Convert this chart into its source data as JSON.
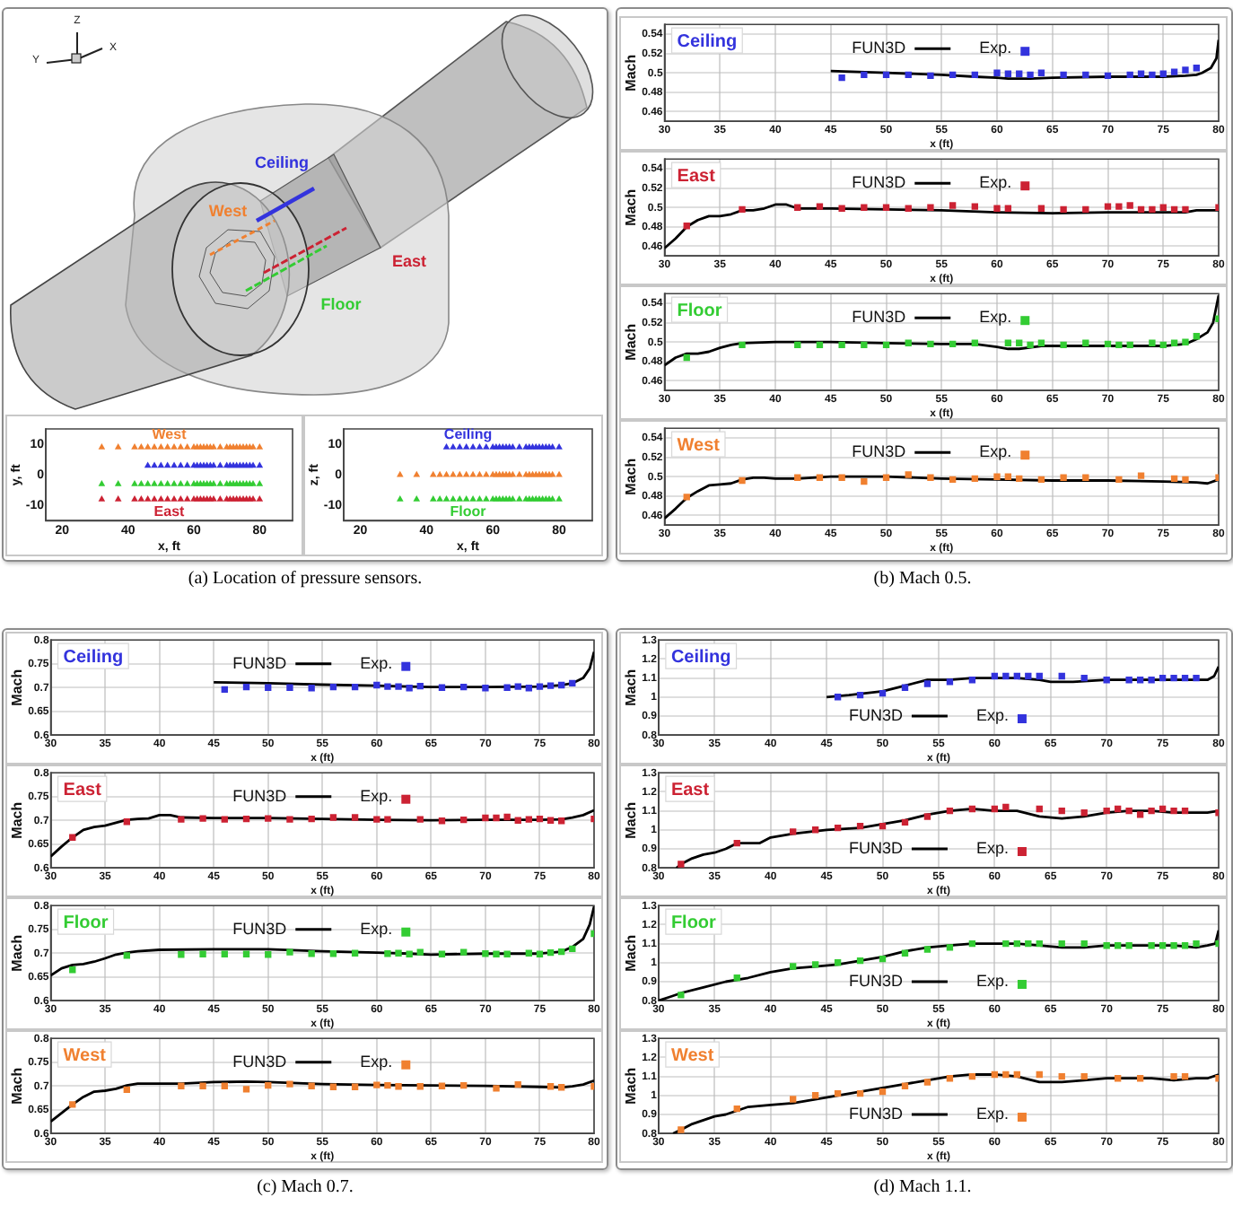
{
  "chart_data": [
    {
      "type": "other",
      "annotations": [
        "Z",
        "Y",
        "X",
        "Ceiling",
        "West",
        "East",
        "Floor"
      ]
    },
    {
      "type": "scatter",
      "xlabel": "x, ft",
      "ylabel": "y, ft",
      "xlim": [
        15,
        90
      ],
      "xticks": [
        20,
        40,
        60,
        80
      ],
      "ylim": [
        -15,
        15
      ],
      "yticks": [
        -10,
        0,
        10
      ],
      "series": [
        {
          "name": "West",
          "color": "#f08030",
          "marker": "triangle",
          "x": [
            32,
            37,
            42,
            44,
            46,
            48,
            50,
            52,
            54,
            56,
            58,
            60,
            61,
            62,
            63,
            64,
            65,
            66,
            68,
            70,
            71,
            72,
            73,
            74,
            75,
            76,
            77,
            78,
            80
          ],
          "values": [
            9,
            9,
            9,
            9,
            9,
            9,
            9,
            9,
            9,
            9,
            9,
            9,
            9,
            9,
            9,
            9,
            9,
            9,
            9,
            9,
            9,
            9,
            9,
            9,
            9,
            9,
            9,
            9,
            9
          ]
        },
        {
          "color": "#3333dd",
          "marker": "triangle",
          "x": [
            46,
            48,
            50,
            52,
            54,
            56,
            58,
            60,
            61,
            62,
            63,
            64,
            65,
            66,
            68,
            70,
            71,
            72,
            73,
            74,
            75,
            76,
            77,
            78,
            80
          ],
          "values": [
            3,
            3,
            3,
            3,
            3,
            3,
            3,
            3,
            3,
            3,
            3,
            3,
            3,
            3,
            3,
            3,
            3,
            3,
            3,
            3,
            3,
            3,
            3,
            3,
            3
          ]
        },
        {
          "color": "#33cc33",
          "marker": "triangle",
          "x": [
            32,
            37,
            42,
            44,
            46,
            48,
            50,
            52,
            54,
            56,
            58,
            60,
            61,
            62,
            63,
            64,
            65,
            66,
            68,
            70,
            71,
            72,
            73,
            74,
            75,
            76,
            77,
            78,
            80
          ],
          "values": [
            -3,
            -3,
            -3,
            -3,
            -3,
            -3,
            -3,
            -3,
            -3,
            -3,
            -3,
            -3,
            -3,
            -3,
            -3,
            -3,
            -3,
            -3,
            -3,
            -3,
            -3,
            -3,
            -3,
            -3,
            -3,
            -3,
            -3,
            -3,
            -3
          ]
        },
        {
          "name": "East",
          "color": "#cc2233",
          "marker": "triangle",
          "x": [
            32,
            37,
            42,
            44,
            46,
            48,
            50,
            52,
            54,
            56,
            58,
            60,
            61,
            62,
            63,
            64,
            65,
            66,
            68,
            70,
            71,
            72,
            73,
            74,
            75,
            76,
            77,
            78,
            80
          ],
          "values": [
            -8,
            -8,
            -8,
            -8,
            -8,
            -8,
            -8,
            -8,
            -8,
            -8,
            -8,
            -8,
            -8,
            -8,
            -8,
            -8,
            -8,
            -8,
            -8,
            -8,
            -8,
            -8,
            -8,
            -8,
            -8,
            -8,
            -8,
            -8,
            -8
          ]
        }
      ]
    },
    {
      "type": "scatter",
      "xlabel": "x, ft",
      "ylabel": "z, ft",
      "xlim": [
        15,
        90
      ],
      "xticks": [
        20,
        40,
        60,
        80
      ],
      "ylim": [
        -15,
        15
      ],
      "yticks": [
        -10,
        0,
        10
      ],
      "annotations": [
        "(a) Location of pressure sensors."
      ],
      "series": [
        {
          "name": "Ceiling",
          "color": "#3333dd",
          "marker": "triangle",
          "x": [
            46,
            48,
            50,
            52,
            54,
            56,
            58,
            60,
            61,
            62,
            63,
            64,
            65,
            66,
            68,
            70,
            71,
            72,
            73,
            74,
            75,
            76,
            77,
            78,
            80
          ],
          "values": [
            9,
            9,
            9,
            9,
            9,
            9,
            9,
            9,
            9,
            9,
            9,
            9,
            9,
            9,
            9,
            9,
            9,
            9,
            9,
            9,
            9,
            9,
            9,
            9,
            9
          ]
        },
        {
          "color": "#f08030",
          "marker": "triangle",
          "x": [
            32,
            37,
            42,
            44,
            46,
            48,
            50,
            52,
            54,
            56,
            58,
            60,
            61,
            62,
            63,
            64,
            65,
            66,
            68,
            70,
            71,
            72,
            73,
            74,
            75,
            76,
            77,
            78,
            80
          ],
          "values": [
            0,
            0,
            0,
            0,
            0,
            0,
            0,
            0,
            0,
            0,
            0,
            0,
            0,
            0,
            0,
            0,
            0,
            0,
            0,
            0,
            0,
            0,
            0,
            0,
            0,
            0,
            0,
            0,
            0
          ]
        },
        {
          "name": "Floor",
          "color": "#33cc33",
          "marker": "triangle",
          "x": [
            32,
            37,
            42,
            44,
            46,
            48,
            50,
            52,
            54,
            56,
            58,
            60,
            61,
            62,
            63,
            64,
            65,
            66,
            68,
            70,
            71,
            72,
            73,
            74,
            75,
            76,
            77,
            78,
            80
          ],
          "values": [
            -8,
            -8,
            -8,
            -8,
            -8,
            -8,
            -8,
            -8,
            -8,
            -8,
            -8,
            -8,
            -8,
            -8,
            -8,
            -8,
            -8,
            -8,
            -8,
            -8,
            -8,
            -8,
            -8,
            -8,
            -8,
            -8,
            -8,
            -8,
            -8
          ]
        }
      ]
    },
    {
      "type": "line",
      "title": "Ceiling",
      "xlabel": "x (ft)",
      "ylabel": "Mach",
      "xlim": [
        30,
        80
      ],
      "xticks": [
        30,
        35,
        40,
        45,
        50,
        55,
        60,
        65,
        70,
        75,
        80
      ],
      "ylim": [
        0.45,
        0.55
      ],
      "yticks": [
        0.46,
        0.48,
        0.5,
        0.52,
        0.54
      ],
      "grid": true,
      "legend": "top",
      "series": [
        {
          "name": "FUN3D",
          "color": "#000000",
          "x": [
            45,
            50,
            55,
            58,
            60,
            61,
            63,
            65,
            70,
            75,
            77,
            78,
            78.5,
            79.3,
            79.8,
            80
          ],
          "values": [
            0.502,
            0.5,
            0.498,
            0.496,
            0.495,
            0.494,
            0.494,
            0.495,
            0.496,
            0.496,
            0.497,
            0.498,
            0.5,
            0.505,
            0.515,
            0.534
          ]
        },
        {
          "name": "Exp.",
          "type": "scatter",
          "marker": "square",
          "color": "#3333dd",
          "x": [
            46,
            48,
            50,
            52,
            54,
            56,
            58,
            60,
            61,
            62,
            63,
            64,
            66,
            68,
            70,
            72,
            73,
            74,
            75,
            76,
            77,
            78
          ],
          "values": [
            0.495,
            0.498,
            0.498,
            0.498,
            0.497,
            0.498,
            0.498,
            0.5,
            0.499,
            0.499,
            0.498,
            0.5,
            0.498,
            0.498,
            0.497,
            0.498,
            0.499,
            0.498,
            0.499,
            0.501,
            0.503,
            0.505
          ]
        }
      ]
    },
    {
      "type": "line",
      "title": "East",
      "xlabel": "x (ft)",
      "ylabel": "Mach",
      "xlim": [
        30,
        80
      ],
      "xticks": [
        30,
        35,
        40,
        45,
        50,
        55,
        60,
        65,
        70,
        75,
        80
      ],
      "ylim": [
        0.45,
        0.55
      ],
      "yticks": [
        0.46,
        0.48,
        0.5,
        0.52,
        0.54
      ],
      "grid": true,
      "legend": "top",
      "series": [
        {
          "name": "FUN3D",
          "color": "#000000",
          "x": [
            30,
            31,
            32,
            33,
            34,
            35,
            36,
            37,
            38,
            39,
            40,
            41,
            42,
            45,
            50,
            55,
            60,
            65,
            70,
            75,
            77,
            78,
            80
          ],
          "values": [
            0.458,
            0.468,
            0.48,
            0.487,
            0.491,
            0.491,
            0.493,
            0.497,
            0.497,
            0.499,
            0.503,
            0.503,
            0.499,
            0.499,
            0.498,
            0.497,
            0.495,
            0.494,
            0.495,
            0.495,
            0.495,
            0.497,
            0.497
          ]
        },
        {
          "name": "Exp.",
          "type": "scatter",
          "marker": "square",
          "color": "#cc2233",
          "x": [
            32,
            37,
            42,
            44,
            46,
            48,
            50,
            52,
            54,
            56,
            58,
            60,
            61,
            64,
            66,
            68,
            70,
            71,
            72,
            73,
            74,
            75,
            76,
            77,
            80
          ],
          "values": [
            0.481,
            0.498,
            0.5,
            0.501,
            0.499,
            0.5,
            0.5,
            0.499,
            0.5,
            0.502,
            0.501,
            0.499,
            0.499,
            0.499,
            0.498,
            0.498,
            0.501,
            0.501,
            0.502,
            0.498,
            0.498,
            0.5,
            0.498,
            0.498,
            0.5
          ]
        }
      ]
    },
    {
      "type": "line",
      "title": "Floor",
      "xlabel": "x (ft)",
      "ylabel": "Mach",
      "xlim": [
        30,
        80
      ],
      "xticks": [
        30,
        35,
        40,
        45,
        50,
        55,
        60,
        65,
        70,
        75,
        80
      ],
      "ylim": [
        0.45,
        0.55
      ],
      "yticks": [
        0.46,
        0.48,
        0.5,
        0.52,
        0.54
      ],
      "grid": true,
      "legend": "top",
      "series": [
        {
          "name": "FUN3D",
          "color": "#000000",
          "x": [
            30,
            31,
            32,
            33,
            34,
            35,
            36,
            37,
            40,
            45,
            50,
            55,
            58,
            60,
            61,
            62,
            64,
            70,
            75,
            77,
            78,
            79,
            79.5,
            80
          ],
          "values": [
            0.476,
            0.484,
            0.488,
            0.488,
            0.49,
            0.494,
            0.497,
            0.499,
            0.5,
            0.5,
            0.499,
            0.498,
            0.498,
            0.495,
            0.493,
            0.493,
            0.496,
            0.496,
            0.496,
            0.498,
            0.503,
            0.51,
            0.52,
            0.548
          ]
        },
        {
          "name": "Exp.",
          "type": "scatter",
          "marker": "square",
          "color": "#33cc33",
          "x": [
            32,
            37,
            42,
            44,
            46,
            48,
            50,
            52,
            54,
            56,
            58,
            61,
            62,
            63,
            64,
            66,
            68,
            70,
            71,
            72,
            74,
            75,
            76,
            77,
            78,
            80
          ],
          "values": [
            0.484,
            0.497,
            0.497,
            0.497,
            0.497,
            0.497,
            0.497,
            0.499,
            0.498,
            0.498,
            0.499,
            0.499,
            0.499,
            0.497,
            0.499,
            0.497,
            0.499,
            0.498,
            0.497,
            0.497,
            0.499,
            0.497,
            0.499,
            0.5,
            0.506,
            0.524
          ]
        }
      ]
    },
    {
      "type": "line",
      "title": "West",
      "xlabel": "x (ft)",
      "ylabel": "Mach",
      "xlim": [
        30,
        80
      ],
      "xticks": [
        30,
        35,
        40,
        45,
        50,
        55,
        60,
        65,
        70,
        75,
        80
      ],
      "ylim": [
        0.45,
        0.55
      ],
      "yticks": [
        0.46,
        0.48,
        0.5,
        0.52,
        0.54
      ],
      "grid": true,
      "legend": "top",
      "annotations": [
        "(b) Mach 0.5."
      ],
      "series": [
        {
          "name": "FUN3D",
          "color": "#000000",
          "x": [
            30,
            31,
            32,
            33,
            34,
            35,
            36,
            37,
            38,
            39,
            40,
            42,
            45,
            50,
            55,
            60,
            65,
            70,
            75,
            78,
            79,
            80
          ],
          "values": [
            0.457,
            0.467,
            0.478,
            0.485,
            0.491,
            0.492,
            0.493,
            0.497,
            0.499,
            0.499,
            0.498,
            0.498,
            0.5,
            0.5,
            0.498,
            0.497,
            0.496,
            0.496,
            0.495,
            0.494,
            0.493,
            0.497
          ]
        },
        {
          "name": "Exp.",
          "type": "scatter",
          "marker": "square",
          "color": "#f08030",
          "x": [
            32,
            37,
            42,
            44,
            46,
            48,
            50,
            52,
            54,
            56,
            58,
            60,
            61,
            62,
            64,
            66,
            68,
            71,
            73,
            76,
            77,
            80
          ],
          "values": [
            0.479,
            0.496,
            0.499,
            0.499,
            0.499,
            0.495,
            0.499,
            0.502,
            0.499,
            0.497,
            0.498,
            0.5,
            0.5,
            0.498,
            0.497,
            0.499,
            0.499,
            0.497,
            0.501,
            0.498,
            0.497,
            0.499
          ]
        }
      ]
    },
    {
      "type": "line",
      "title": "Ceiling",
      "xlabel": "x (ft)",
      "ylabel": "Mach",
      "xlim": [
        30,
        80
      ],
      "xticks": [
        30,
        35,
        40,
        45,
        50,
        55,
        60,
        65,
        70,
        75,
        80
      ],
      "ylim": [
        0.6,
        0.8
      ],
      "yticks": [
        0.6,
        0.65,
        0.7,
        0.75,
        0.8
      ],
      "grid": true,
      "legend": "top",
      "series": [
        {
          "name": "FUN3D",
          "color": "#000000",
          "x": [
            45,
            50,
            55,
            60,
            63,
            65,
            70,
            75,
            77,
            78,
            79,
            79.6,
            80
          ],
          "values": [
            0.711,
            0.709,
            0.706,
            0.704,
            0.702,
            0.701,
            0.701,
            0.702,
            0.705,
            0.709,
            0.72,
            0.74,
            0.775
          ]
        },
        {
          "name": "Exp.",
          "type": "scatter",
          "marker": "square",
          "color": "#3333dd",
          "x": [
            46,
            48,
            50,
            52,
            54,
            56,
            58,
            60,
            61,
            62,
            63,
            64,
            66,
            68,
            70,
            72,
            73,
            74,
            75,
            76,
            77,
            78
          ],
          "values": [
            0.696,
            0.701,
            0.7,
            0.7,
            0.699,
            0.701,
            0.701,
            0.705,
            0.702,
            0.702,
            0.699,
            0.703,
            0.7,
            0.701,
            0.699,
            0.7,
            0.702,
            0.699,
            0.702,
            0.704,
            0.705,
            0.709
          ]
        }
      ]
    },
    {
      "type": "line",
      "title": "East",
      "xlabel": "x (ft)",
      "ylabel": "Mach",
      "xlim": [
        30,
        80
      ],
      "xticks": [
        30,
        35,
        40,
        45,
        50,
        55,
        60,
        65,
        70,
        75,
        80
      ],
      "ylim": [
        0.6,
        0.8
      ],
      "yticks": [
        0.6,
        0.65,
        0.7,
        0.75,
        0.8
      ],
      "grid": true,
      "legend": "top",
      "series": [
        {
          "name": "FUN3D",
          "color": "#000000",
          "x": [
            30,
            31,
            32,
            33,
            34,
            35,
            36,
            37,
            38,
            39,
            40,
            41,
            42,
            45,
            50,
            55,
            60,
            65,
            70,
            75,
            77,
            78,
            79,
            80
          ],
          "values": [
            0.624,
            0.645,
            0.664,
            0.68,
            0.686,
            0.689,
            0.695,
            0.701,
            0.703,
            0.704,
            0.711,
            0.711,
            0.706,
            0.705,
            0.705,
            0.703,
            0.701,
            0.7,
            0.701,
            0.701,
            0.702,
            0.706,
            0.711,
            0.721
          ]
        },
        {
          "name": "Exp.",
          "type": "scatter",
          "marker": "square",
          "color": "#cc2233",
          "x": [
            32,
            37,
            42,
            44,
            46,
            48,
            50,
            52,
            54,
            56,
            58,
            60,
            61,
            64,
            66,
            68,
            70,
            71,
            72,
            73,
            74,
            75,
            76,
            77,
            80
          ],
          "values": [
            0.664,
            0.697,
            0.702,
            0.704,
            0.702,
            0.703,
            0.704,
            0.702,
            0.703,
            0.706,
            0.706,
            0.702,
            0.702,
            0.702,
            0.699,
            0.701,
            0.705,
            0.705,
            0.707,
            0.7,
            0.702,
            0.703,
            0.7,
            0.699,
            0.703
          ]
        }
      ]
    },
    {
      "type": "line",
      "title": "Floor",
      "xlabel": "x (ft)",
      "ylabel": "Mach",
      "xlim": [
        30,
        80
      ],
      "xticks": [
        30,
        35,
        40,
        45,
        50,
        55,
        60,
        65,
        70,
        75,
        80
      ],
      "ylim": [
        0.6,
        0.8
      ],
      "yticks": [
        0.6,
        0.65,
        0.7,
        0.75,
        0.8
      ],
      "grid": true,
      "legend": "top",
      "series": [
        {
          "name": "FUN3D",
          "color": "#000000",
          "x": [
            30,
            31,
            32,
            33,
            34,
            35,
            36,
            37,
            38,
            40,
            45,
            50,
            55,
            60,
            63,
            65,
            70,
            75,
            77,
            78,
            79,
            79.6,
            80
          ],
          "values": [
            0.653,
            0.668,
            0.675,
            0.677,
            0.682,
            0.689,
            0.697,
            0.701,
            0.704,
            0.707,
            0.708,
            0.708,
            0.704,
            0.701,
            0.699,
            0.697,
            0.699,
            0.699,
            0.703,
            0.713,
            0.73,
            0.76,
            0.798
          ]
        },
        {
          "name": "Exp.",
          "type": "scatter",
          "marker": "square",
          "color": "#33cc33",
          "x": [
            32,
            37,
            42,
            44,
            46,
            48,
            50,
            52,
            54,
            56,
            58,
            61,
            62,
            63,
            64,
            66,
            68,
            70,
            71,
            72,
            74,
            75,
            76,
            77,
            78,
            80
          ],
          "values": [
            0.665,
            0.695,
            0.697,
            0.698,
            0.698,
            0.698,
            0.697,
            0.702,
            0.699,
            0.699,
            0.7,
            0.699,
            0.7,
            0.698,
            0.702,
            0.698,
            0.702,
            0.699,
            0.698,
            0.698,
            0.7,
            0.698,
            0.701,
            0.703,
            0.709,
            0.741
          ]
        }
      ]
    },
    {
      "type": "line",
      "title": "West",
      "xlabel": "x (ft)",
      "ylabel": "Mach",
      "xlim": [
        30,
        80
      ],
      "xticks": [
        30,
        35,
        40,
        45,
        50,
        55,
        60,
        65,
        70,
        75,
        80
      ],
      "ylim": [
        0.6,
        0.8
      ],
      "yticks": [
        0.6,
        0.65,
        0.7,
        0.75,
        0.8
      ],
      "grid": true,
      "legend": "top",
      "annotations": [
        "(c) Mach 0.7."
      ],
      "series": [
        {
          "name": "FUN3D",
          "color": "#000000",
          "x": [
            30,
            31,
            32,
            33,
            34,
            35,
            36,
            37,
            38,
            40,
            42,
            45,
            48,
            50,
            55,
            60,
            65,
            70,
            75,
            77,
            78,
            79,
            80
          ],
          "values": [
            0.625,
            0.643,
            0.661,
            0.677,
            0.688,
            0.69,
            0.694,
            0.701,
            0.705,
            0.705,
            0.705,
            0.708,
            0.709,
            0.708,
            0.704,
            0.702,
            0.701,
            0.7,
            0.698,
            0.697,
            0.699,
            0.703,
            0.711
          ]
        },
        {
          "name": "Exp.",
          "type": "scatter",
          "marker": "square",
          "color": "#f08030",
          "x": [
            32,
            37,
            42,
            44,
            46,
            48,
            50,
            52,
            54,
            56,
            58,
            60,
            61,
            62,
            64,
            66,
            68,
            71,
            73,
            76,
            77,
            80
          ],
          "values": [
            0.661,
            0.692,
            0.7,
            0.7,
            0.7,
            0.693,
            0.701,
            0.704,
            0.7,
            0.698,
            0.698,
            0.702,
            0.701,
            0.699,
            0.699,
            0.7,
            0.701,
            0.695,
            0.703,
            0.699,
            0.697,
            0.699
          ]
        }
      ]
    },
    {
      "type": "line",
      "title": "Ceiling",
      "xlabel": "x (ft)",
      "ylabel": "Mach",
      "xlim": [
        30,
        80
      ],
      "xticks": [
        30,
        35,
        40,
        45,
        50,
        55,
        60,
        65,
        70,
        75,
        80
      ],
      "ylim": [
        0.8,
        1.3
      ],
      "yticks": [
        0.8,
        0.9,
        1,
        1.1,
        1.2,
        1.3
      ],
      "grid": true,
      "legend": "bottom",
      "series": [
        {
          "name": "FUN3D",
          "color": "#000000",
          "x": [
            45,
            47,
            50,
            52,
            54,
            56,
            58,
            60,
            62,
            64,
            65,
            67,
            70,
            73,
            75,
            77,
            78,
            79,
            79.6,
            80
          ],
          "values": [
            1,
            1.01,
            1.03,
            1.06,
            1.09,
            1.09,
            1.1,
            1.1,
            1.1,
            1.09,
            1.08,
            1.08,
            1.09,
            1.09,
            1.09,
            1.09,
            1.09,
            1.09,
            1.11,
            1.16
          ]
        },
        {
          "name": "Exp.",
          "type": "scatter",
          "marker": "square",
          "color": "#3333dd",
          "x": [
            46,
            48,
            50,
            52,
            54,
            56,
            58,
            60,
            61,
            62,
            63,
            64,
            66,
            68,
            70,
            72,
            73,
            74,
            75,
            76,
            77,
            78
          ],
          "values": [
            1,
            1.01,
            1.02,
            1.05,
            1.07,
            1.08,
            1.09,
            1.11,
            1.11,
            1.11,
            1.11,
            1.11,
            1.11,
            1.1,
            1.09,
            1.09,
            1.09,
            1.09,
            1.1,
            1.1,
            1.1,
            1.1
          ]
        }
      ]
    },
    {
      "type": "line",
      "title": "East",
      "xlabel": "x (ft)",
      "ylabel": "Mach",
      "xlim": [
        30,
        80
      ],
      "xticks": [
        30,
        35,
        40,
        45,
        50,
        55,
        60,
        65,
        70,
        75,
        80
      ],
      "ylim": [
        0.8,
        1.3
      ],
      "yticks": [
        0.8,
        0.9,
        1,
        1.1,
        1.2,
        1.3
      ],
      "grid": true,
      "legend": "bottom",
      "series": [
        {
          "name": "FUN3D",
          "color": "#000000",
          "x": [
            31.6,
            32,
            33,
            34,
            35,
            36,
            37,
            38,
            39,
            40,
            42,
            45,
            48,
            50,
            52,
            54,
            56,
            58,
            60,
            62,
            64,
            66,
            68,
            70,
            72,
            74,
            76,
            78,
            79,
            80
          ],
          "values": [
            0.8,
            0.82,
            0.85,
            0.87,
            0.88,
            0.9,
            0.93,
            0.93,
            0.93,
            0.96,
            0.98,
            1,
            1.01,
            1.03,
            1.05,
            1.08,
            1.1,
            1.11,
            1.1,
            1.1,
            1.07,
            1.06,
            1.07,
            1.09,
            1.1,
            1.1,
            1.09,
            1.09,
            1.09,
            1.1
          ]
        },
        {
          "name": "Exp.",
          "type": "scatter",
          "marker": "square",
          "color": "#cc2233",
          "x": [
            32,
            37,
            42,
            44,
            46,
            48,
            50,
            52,
            54,
            56,
            58,
            60,
            61,
            64,
            66,
            68,
            70,
            71,
            72,
            73,
            74,
            75,
            76,
            77,
            80
          ],
          "values": [
            0.82,
            0.93,
            0.99,
            1,
            1.01,
            1.02,
            1.02,
            1.04,
            1.07,
            1.1,
            1.11,
            1.11,
            1.12,
            1.11,
            1.1,
            1.09,
            1.1,
            1.11,
            1.1,
            1.08,
            1.1,
            1.11,
            1.1,
            1.1,
            1.09
          ]
        }
      ]
    },
    {
      "type": "line",
      "title": "Floor",
      "xlabel": "x (ft)",
      "ylabel": "Mach",
      "xlim": [
        30,
        80
      ],
      "xticks": [
        30,
        35,
        40,
        45,
        50,
        55,
        60,
        65,
        70,
        75,
        80
      ],
      "ylim": [
        0.8,
        1.3
      ],
      "yticks": [
        0.8,
        0.9,
        1,
        1.1,
        1.2,
        1.3
      ],
      "grid": true,
      "legend": "bottom",
      "series": [
        {
          "name": "FUN3D",
          "color": "#000000",
          "x": [
            30,
            31,
            32,
            34,
            36,
            38,
            40,
            42,
            44,
            46,
            48,
            50,
            52,
            54,
            56,
            58,
            60,
            62,
            64,
            66,
            68,
            70,
            72,
            74,
            76,
            78,
            79,
            79.7,
            80
          ],
          "values": [
            0.8,
            0.82,
            0.84,
            0.87,
            0.9,
            0.92,
            0.95,
            0.97,
            0.98,
            0.99,
            1.01,
            1.03,
            1.06,
            1.08,
            1.09,
            1.1,
            1.1,
            1.1,
            1.09,
            1.08,
            1.08,
            1.09,
            1.09,
            1.09,
            1.09,
            1.08,
            1.09,
            1.1,
            1.17
          ]
        },
        {
          "name": "Exp.",
          "type": "scatter",
          "marker": "square",
          "color": "#33cc33",
          "x": [
            32,
            37,
            42,
            44,
            46,
            48,
            50,
            52,
            54,
            56,
            58,
            61,
            62,
            63,
            64,
            66,
            68,
            70,
            71,
            72,
            74,
            75,
            76,
            77,
            78,
            80
          ],
          "values": [
            0.83,
            0.92,
            0.98,
            0.99,
            1,
            1.01,
            1.02,
            1.05,
            1.07,
            1.08,
            1.1,
            1.1,
            1.1,
            1.1,
            1.1,
            1.1,
            1.1,
            1.09,
            1.09,
            1.09,
            1.09,
            1.09,
            1.09,
            1.09,
            1.1,
            1.1
          ]
        }
      ]
    },
    {
      "type": "line",
      "title": "West",
      "xlabel": "x (ft)",
      "ylabel": "Mach",
      "xlim": [
        30,
        80
      ],
      "xticks": [
        30,
        35,
        40,
        45,
        50,
        55,
        60,
        65,
        70,
        75,
        80
      ],
      "ylim": [
        0.8,
        1.3
      ],
      "yticks": [
        0.8,
        0.9,
        1,
        1.1,
        1.2,
        1.3
      ],
      "grid": true,
      "legend": "bottom",
      "annotations": [
        "(d) Mach 1.1."
      ],
      "series": [
        {
          "name": "FUN3D",
          "color": "#000000",
          "x": [
            31.3,
            32,
            33,
            34,
            35,
            36,
            37,
            38,
            40,
            42,
            44,
            46,
            48,
            50,
            52,
            54,
            56,
            58,
            60,
            62,
            64,
            66,
            68,
            70,
            72,
            74,
            76,
            78,
            79,
            80
          ],
          "values": [
            0.8,
            0.82,
            0.85,
            0.87,
            0.89,
            0.9,
            0.92,
            0.94,
            0.95,
            0.96,
            0.98,
            1,
            1.02,
            1.04,
            1.06,
            1.08,
            1.1,
            1.11,
            1.11,
            1.1,
            1.07,
            1.07,
            1.08,
            1.09,
            1.09,
            1.09,
            1.08,
            1.09,
            1.09,
            1.11
          ]
        },
        {
          "name": "Exp.",
          "type": "scatter",
          "marker": "square",
          "color": "#f08030",
          "x": [
            32,
            37,
            42,
            44,
            46,
            48,
            50,
            52,
            54,
            56,
            58,
            60,
            61,
            62,
            64,
            66,
            68,
            71,
            73,
            76,
            77,
            80
          ],
          "values": [
            0.82,
            0.93,
            0.98,
            1,
            1.01,
            1.01,
            1.02,
            1.05,
            1.07,
            1.09,
            1.1,
            1.11,
            1.11,
            1.11,
            1.11,
            1.1,
            1.1,
            1.09,
            1.09,
            1.1,
            1.1,
            1.09
          ]
        }
      ]
    }
  ]
}
